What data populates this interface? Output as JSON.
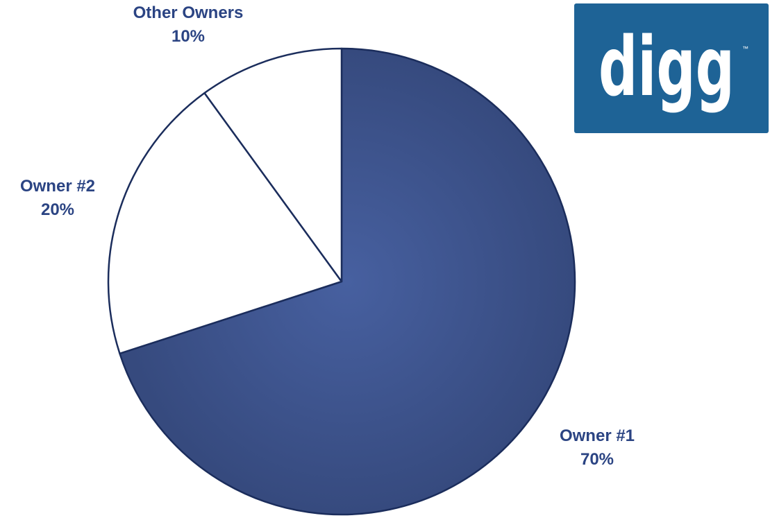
{
  "chart_data": {
    "type": "pie",
    "start": "12 o'clock",
    "direction": "clockwise",
    "slices": [
      {
        "name": "Owner #1",
        "value": 70,
        "label": "70%",
        "color": "#3F5797"
      },
      {
        "name": "Owner #2",
        "value": 20,
        "label": "20%",
        "color": "#FFFFFF"
      },
      {
        "name": "Other Owners",
        "value": 10,
        "label": "10%",
        "color": "#FFFFFF"
      }
    ],
    "edge_color": "#1B2D5C",
    "label_color": "#2B4483"
  },
  "logo": {
    "text": "digg",
    "trademark": "™",
    "background": "#1E6396",
    "text_color": "#FFFFFF"
  }
}
